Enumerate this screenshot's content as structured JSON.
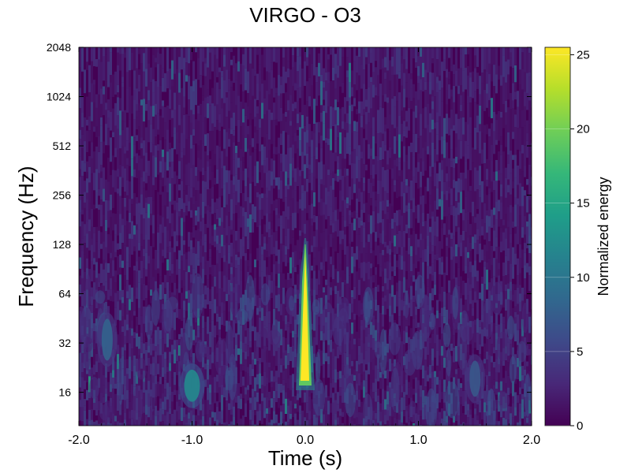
{
  "chart_data": {
    "type": "heatmap",
    "title": "VIRGO - O3",
    "xlabel": "Time (s)",
    "ylabel": "Frequency (Hz)",
    "xlim": [
      -2.0,
      2.0
    ],
    "ylim": [
      10,
      2048
    ],
    "yscale": "log2",
    "x_ticks": [
      -2.0,
      -1.0,
      0.0,
      1.0,
      2.0
    ],
    "x_tick_labels": [
      "-2.0",
      "-1.0",
      "0.0",
      "1.0",
      "2.0"
    ],
    "y_ticks": [
      16,
      32,
      64,
      128,
      256,
      512,
      1024,
      2048
    ],
    "y_tick_labels": [
      "16",
      "32",
      "64",
      "128",
      "256",
      "512",
      "1024",
      "2048"
    ],
    "colorbar": {
      "label": "Normalized energy",
      "range": [
        0,
        25.5
      ],
      "ticks": [
        0,
        5,
        10,
        15,
        20,
        25
      ],
      "tick_labels": [
        "0",
        "5",
        "10",
        "15",
        "20",
        "25"
      ],
      "colormap": "viridis"
    },
    "features": [
      {
        "x": 0.0,
        "freq_low": 18,
        "freq_high": 140,
        "energy": 25.5
      },
      {
        "x": -1.0,
        "freq_low": 14,
        "freq_high": 22,
        "energy": 12
      },
      {
        "x": -1.75,
        "freq_low": 25,
        "freq_high": 45,
        "energy": 8
      },
      {
        "x": 1.5,
        "freq_low": 15,
        "freq_high": 25,
        "energy": 7
      }
    ],
    "background_energy": 1.5,
    "grid": false
  },
  "colors": {
    "viridis": [
      "#440154",
      "#482878",
      "#3e4989",
      "#31688e",
      "#26828e",
      "#1f9e89",
      "#35b779",
      "#6ece58",
      "#b5de2b",
      "#fde725"
    ],
    "background": "#ffffff",
    "text": "#000000"
  }
}
